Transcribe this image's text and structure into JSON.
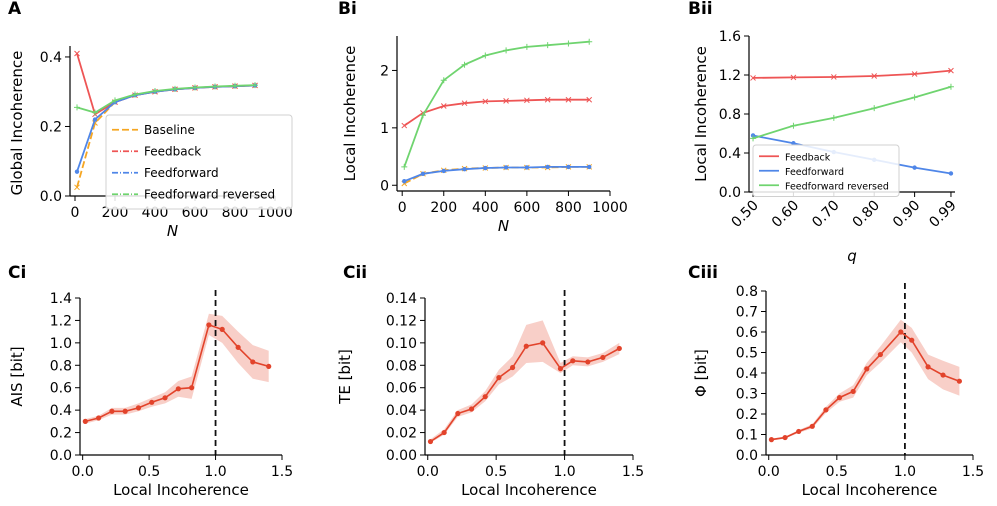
{
  "colors": {
    "baseline": "#f5a623",
    "feedback": "#ee5555",
    "feedforward": "#4f86e8",
    "reversed": "#6fd46f",
    "metric": "#e2432b",
    "band": "#f2a79a"
  },
  "chart_data": [
    {
      "panel_label": "A",
      "type": "line",
      "xlabel": "N",
      "ylabel": "Global Incoherence",
      "xlim": [
        -25,
        1000
      ],
      "ylim": [
        0,
        0.42
      ],
      "xticks": [
        0,
        200,
        400,
        600,
        800,
        1000
      ],
      "xtick_labels": [
        "0",
        "200",
        "400",
        "600",
        "800",
        "1000"
      ],
      "yticks": [
        0,
        0.2,
        0.4
      ],
      "ytick_labels": [
        "0.0",
        "0.2",
        "0.4"
      ],
      "x": [
        10,
        100,
        200,
        300,
        400,
        500,
        600,
        700,
        800,
        900
      ],
      "legend": "inside-right",
      "series": [
        {
          "name": "Baseline",
          "key": "baseline",
          "values": [
            0.025,
            0.21,
            0.27,
            0.29,
            0.3,
            0.307,
            0.311,
            0.314,
            0.316,
            0.318
          ]
        },
        {
          "name": "Feedback",
          "key": "feedback",
          "values": [
            0.41,
            0.235,
            0.27,
            0.29,
            0.3,
            0.307,
            0.311,
            0.314,
            0.316,
            0.318
          ]
        },
        {
          "name": "Feedforward",
          "key": "feedforward",
          "values": [
            0.07,
            0.22,
            0.27,
            0.29,
            0.3,
            0.307,
            0.311,
            0.314,
            0.316,
            0.318
          ]
        },
        {
          "name": "Feedforward reversed",
          "key": "reversed",
          "values": [
            0.255,
            0.24,
            0.275,
            0.292,
            0.302,
            0.308,
            0.312,
            0.315,
            0.317,
            0.319
          ]
        }
      ]
    },
    {
      "panel_label": "Bi",
      "type": "line",
      "xlabel": "N",
      "ylabel": "Local Incoherence",
      "xlim": [
        -25,
        1000
      ],
      "ylim": [
        -0.1,
        2.6
      ],
      "xticks": [
        0,
        200,
        400,
        600,
        800,
        1000
      ],
      "xtick_labels": [
        "0",
        "200",
        "400",
        "600",
        "800",
        "1000"
      ],
      "yticks": [
        0,
        1,
        2
      ],
      "ytick_labels": [
        "0",
        "1",
        "2"
      ],
      "x": [
        10,
        100,
        200,
        300,
        400,
        500,
        600,
        700,
        800,
        900
      ],
      "series": [
        {
          "key": "baseline",
          "values": [
            0.03,
            0.2,
            0.26,
            0.29,
            0.3,
            0.31,
            0.31,
            0.31,
            0.32,
            0.32
          ]
        },
        {
          "key": "feedback",
          "values": [
            1.04,
            1.26,
            1.38,
            1.43,
            1.46,
            1.47,
            1.48,
            1.49,
            1.49,
            1.49
          ]
        },
        {
          "key": "feedforward",
          "values": [
            0.07,
            0.2,
            0.25,
            0.28,
            0.3,
            0.31,
            0.31,
            0.32,
            0.32,
            0.32
          ]
        },
        {
          "key": "reversed",
          "values": [
            0.32,
            1.22,
            1.83,
            2.1,
            2.26,
            2.35,
            2.41,
            2.44,
            2.47,
            2.5
          ]
        }
      ]
    },
    {
      "panel_label": "Bii",
      "type": "line",
      "xlabel": "q",
      "ylabel": "Local Incoherence",
      "xlim": [
        0.49,
        1.0
      ],
      "ylim": [
        0,
        1.6
      ],
      "xticks": [
        0.5,
        0.6,
        0.7,
        0.8,
        0.9,
        0.99
      ],
      "xtick_labels": [
        "0.50",
        "0.60",
        "0.70",
        "0.80",
        "0.90",
        "0.99"
      ],
      "yticks": [
        0,
        0.4,
        0.8,
        1.2,
        1.6
      ],
      "ytick_labels": [
        "0.0",
        "0.4",
        "0.8",
        "1.2",
        "1.6"
      ],
      "x": [
        0.5,
        0.6,
        0.7,
        0.8,
        0.9,
        0.99
      ],
      "legend": "lower-left",
      "series": [
        {
          "name": "Feedback",
          "key": "feedback",
          "values": [
            1.17,
            1.175,
            1.18,
            1.19,
            1.21,
            1.245
          ]
        },
        {
          "name": "Feedforward",
          "key": "feedforward",
          "values": [
            0.58,
            0.5,
            0.41,
            0.33,
            0.25,
            0.19
          ]
        },
        {
          "name": "Feedforward reversed",
          "key": "reversed",
          "values": [
            0.55,
            0.68,
            0.76,
            0.86,
            0.97,
            1.08
          ]
        }
      ]
    },
    {
      "panel_label": "Ci",
      "type": "line",
      "xlabel": "Local Incoherence",
      "ylabel": "AIS [bit]",
      "xlim": [
        -0.02,
        1.5
      ],
      "ylim": [
        0,
        1.4
      ],
      "xticks": [
        0,
        0.5,
        1.0,
        1.5
      ],
      "xtick_labels": [
        "0.0",
        "0.5",
        "1.0",
        "1.5"
      ],
      "yticks": [
        0,
        0.2,
        0.4,
        0.6,
        0.8,
        1.0,
        1.2,
        1.4
      ],
      "ytick_labels": [
        "0.0",
        "0.2",
        "0.4",
        "0.6",
        "0.8",
        "1.0",
        "1.2",
        "1.4"
      ],
      "vline": 1.0,
      "x": [
        0.02,
        0.12,
        0.22,
        0.32,
        0.42,
        0.52,
        0.62,
        0.72,
        0.82,
        0.95,
        1.05,
        1.17,
        1.28,
        1.4
      ],
      "series": [
        {
          "key": "metric",
          "values": [
            0.3,
            0.33,
            0.39,
            0.39,
            0.42,
            0.47,
            0.51,
            0.59,
            0.6,
            1.16,
            1.12,
            0.96,
            0.83,
            0.79
          ],
          "lower": [
            0.28,
            0.31,
            0.36,
            0.36,
            0.39,
            0.43,
            0.46,
            0.52,
            0.5,
            1.07,
            1.0,
            0.82,
            0.68,
            0.65
          ],
          "upper": [
            0.32,
            0.35,
            0.42,
            0.42,
            0.46,
            0.51,
            0.56,
            0.66,
            0.7,
            1.26,
            1.24,
            1.1,
            0.98,
            0.93
          ]
        }
      ]
    },
    {
      "panel_label": "Cii",
      "type": "line",
      "xlabel": "Local Incoherence",
      "ylabel": "TE [bit]",
      "xlim": [
        -0.02,
        1.5
      ],
      "ylim": [
        0,
        0.14
      ],
      "xticks": [
        0,
        0.5,
        1.0,
        1.5
      ],
      "xtick_labels": [
        "0.0",
        "0.5",
        "1.0",
        "1.5"
      ],
      "yticks": [
        0,
        0.02,
        0.04,
        0.06,
        0.08,
        0.1,
        0.12,
        0.14
      ],
      "ytick_labels": [
        "0.00",
        "0.02",
        "0.04",
        "0.06",
        "0.08",
        "0.10",
        "0.12",
        "0.14"
      ],
      "vline": 1.0,
      "x": [
        0.02,
        0.12,
        0.22,
        0.32,
        0.42,
        0.52,
        0.62,
        0.72,
        0.84,
        0.97,
        1.06,
        1.17,
        1.28,
        1.4
      ],
      "series": [
        {
          "key": "metric",
          "values": [
            0.012,
            0.02,
            0.037,
            0.041,
            0.052,
            0.069,
            0.078,
            0.097,
            0.1,
            0.077,
            0.084,
            0.083,
            0.087,
            0.095
          ],
          "lower": [
            0.011,
            0.018,
            0.034,
            0.038,
            0.048,
            0.063,
            0.07,
            0.082,
            0.083,
            0.073,
            0.08,
            0.079,
            0.083,
            0.09
          ],
          "upper": [
            0.014,
            0.023,
            0.04,
            0.045,
            0.057,
            0.076,
            0.088,
            0.116,
            0.12,
            0.082,
            0.088,
            0.087,
            0.091,
            0.1
          ]
        }
      ]
    },
    {
      "panel_label": "Ciii",
      "type": "line",
      "xlabel": "Local Incoherence",
      "ylabel": "Φ [bit]",
      "xlim": [
        -0.02,
        1.5
      ],
      "ylim": [
        0,
        0.8
      ],
      "xticks": [
        0,
        0.5,
        1.0,
        1.5
      ],
      "xtick_labels": [
        "0.0",
        "0.5",
        "1.0",
        "1.5"
      ],
      "yticks": [
        0,
        0.1,
        0.2,
        0.3,
        0.4,
        0.5,
        0.6,
        0.7,
        0.8
      ],
      "ytick_labels": [
        "0.0",
        "0.1",
        "0.2",
        "0.3",
        "0.4",
        "0.5",
        "0.6",
        "0.7",
        "0.8"
      ],
      "vline": 1.0,
      "x": [
        0.02,
        0.12,
        0.22,
        0.32,
        0.42,
        0.52,
        0.62,
        0.72,
        0.82,
        0.97,
        1.05,
        1.17,
        1.28,
        1.4
      ],
      "series": [
        {
          "key": "metric",
          "values": [
            0.075,
            0.085,
            0.115,
            0.14,
            0.22,
            0.28,
            0.31,
            0.42,
            0.49,
            0.6,
            0.56,
            0.43,
            0.39,
            0.36
          ],
          "lower": [
            0.07,
            0.08,
            0.108,
            0.13,
            0.205,
            0.26,
            0.28,
            0.39,
            0.45,
            0.55,
            0.5,
            0.37,
            0.32,
            0.29
          ],
          "upper": [
            0.08,
            0.09,
            0.122,
            0.15,
            0.235,
            0.3,
            0.34,
            0.45,
            0.53,
            0.66,
            0.62,
            0.49,
            0.46,
            0.43
          ]
        }
      ]
    }
  ]
}
